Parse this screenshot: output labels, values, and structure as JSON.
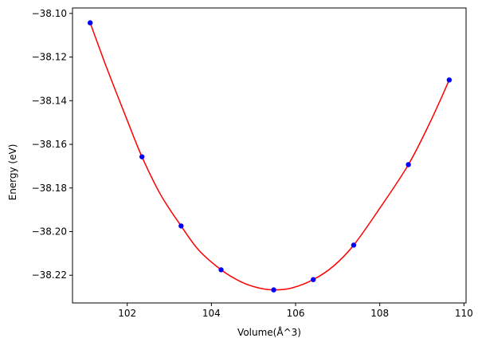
{
  "chart_data": {
    "type": "line",
    "title": "",
    "xlabel": "Volume(Å^3)",
    "ylabel": "Energy (eV)",
    "xlim": [
      100.7,
      110.05
    ],
    "ylim": [
      -38.2327,
      -38.0975
    ],
    "x_ticks": [
      102,
      104,
      106,
      108,
      110
    ],
    "y_ticks": [
      -38.1,
      -38.12,
      -38.14,
      -38.16,
      -38.18,
      -38.2,
      -38.22
    ],
    "x_tick_labels": [
      "102",
      "104",
      "106",
      "108",
      "110"
    ],
    "y_tick_labels": [
      "−38.10",
      "−38.12",
      "−38.14",
      "−38.16",
      "−38.18",
      "−38.20",
      "−38.22"
    ],
    "grid": false,
    "legend": "none",
    "series": [
      {
        "kind": "scatter",
        "color": "#0000ff",
        "marker": "circle",
        "x": [
          101.12,
          102.35,
          103.28,
          104.23,
          105.48,
          106.42,
          107.38,
          108.68,
          109.65
        ],
        "y": [
          -38.1043,
          -38.1657,
          -38.1974,
          -38.2175,
          -38.2267,
          -38.222,
          -38.2062,
          -38.1693,
          -38.1305
        ]
      },
      {
        "kind": "fit-curve",
        "color": "#ff0000",
        "x": [
          101.12,
          101.5,
          102.0,
          102.35,
          102.8,
          103.28,
          103.7,
          104.23,
          104.7,
          105.1,
          105.48,
          105.9,
          106.42,
          106.9,
          107.38,
          108.0,
          108.68,
          109.2,
          109.65
        ],
        "y": [
          -38.1043,
          -38.1243,
          -38.149,
          -38.1657,
          -38.1833,
          -38.1974,
          -38.2085,
          -38.2175,
          -38.223,
          -38.2257,
          -38.2267,
          -38.2259,
          -38.222,
          -38.2158,
          -38.2062,
          -38.1893,
          -38.1693,
          -38.1497,
          -38.1305
        ]
      }
    ]
  }
}
